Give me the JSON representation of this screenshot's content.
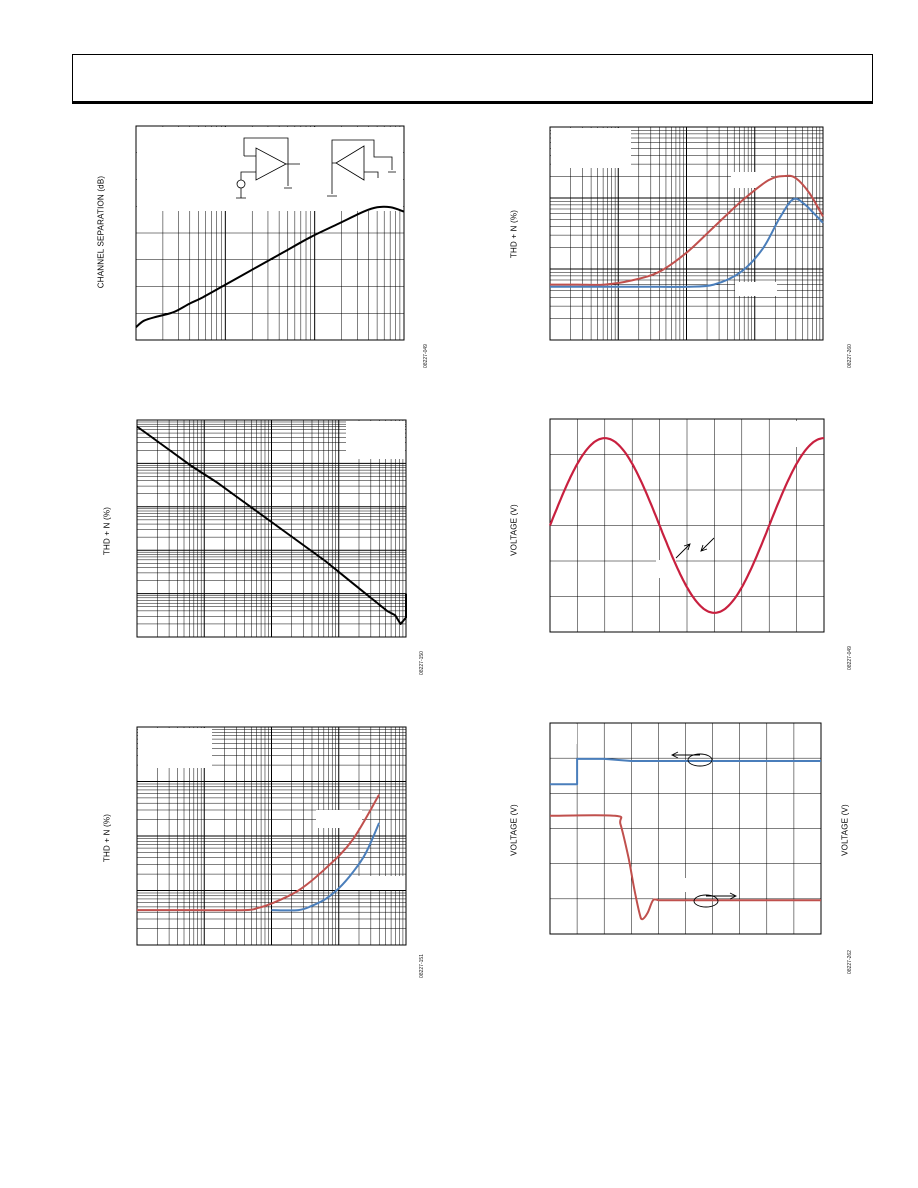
{
  "page": {
    "colors": {
      "black": "#000000",
      "red": "#c0504d",
      "blue": "#4a7ebb",
      "crimson": "#c8203f",
      "grid": "#000000"
    },
    "figures": [
      {
        "id": "fig1",
        "ylabel": "CHANNEL SEPARATION (dB)",
        "code": "08227-049",
        "y2label": ""
      },
      {
        "id": "fig2",
        "ylabel": "THD + N (%)",
        "code": "08227-260",
        "y2label": ""
      },
      {
        "id": "fig3",
        "ylabel": "THD + N (%)",
        "code": "08227-150",
        "y2label": ""
      },
      {
        "id": "fig4",
        "ylabel": "VOLTAGE (V)",
        "code": "08227-049",
        "y2label": ""
      },
      {
        "id": "fig5",
        "ylabel": "THD + N (%)",
        "code": "08227-151",
        "y2label": ""
      },
      {
        "id": "fig6",
        "ylabel": "VOLTAGE (V)",
        "code": "08227-262",
        "y2label": "VOLTAGE (V)"
      }
    ]
  },
  "chart_data": [
    {
      "id": "fig1",
      "type": "line",
      "x_scale": "log",
      "grid": true,
      "title": "",
      "xlabel": "",
      "ylabel": "CHANNEL SEPARATION (dB)",
      "series": [
        {
          "color": "#000000",
          "x": [
            0.0,
            0.03,
            0.08,
            0.14,
            0.2,
            0.25,
            0.35,
            0.45,
            0.55,
            0.65,
            0.75,
            0.85,
            0.9,
            0.95,
            1.0
          ],
          "y": [
            0.06,
            0.09,
            0.11,
            0.13,
            0.17,
            0.2,
            0.27,
            0.34,
            0.41,
            0.48,
            0.54,
            0.6,
            0.62,
            0.62,
            0.6
          ]
        }
      ],
      "inset_schematic": true
    },
    {
      "id": "fig2",
      "type": "line",
      "x_scale": "log",
      "y_scale": "log",
      "grid": true,
      "title": "",
      "xlabel": "",
      "ylabel": "THD + N (%)",
      "series": [
        {
          "color": "#c0504d",
          "x": [
            0.0,
            0.1,
            0.2,
            0.3,
            0.4,
            0.5,
            0.6,
            0.7,
            0.8,
            0.86,
            0.9,
            0.95,
            1.0
          ],
          "y": [
            0.26,
            0.26,
            0.26,
            0.28,
            0.32,
            0.41,
            0.53,
            0.65,
            0.75,
            0.77,
            0.76,
            0.69,
            0.58
          ]
        },
        {
          "color": "#4a7ebb",
          "x": [
            0.0,
            0.1,
            0.2,
            0.3,
            0.4,
            0.5,
            0.6,
            0.7,
            0.78,
            0.84,
            0.89,
            0.93,
            0.97,
            1.0
          ],
          "y": [
            0.25,
            0.25,
            0.25,
            0.25,
            0.25,
            0.25,
            0.26,
            0.32,
            0.43,
            0.57,
            0.66,
            0.64,
            0.59,
            0.55
          ]
        }
      ]
    },
    {
      "id": "fig3",
      "type": "line",
      "x_scale": "log",
      "y_scale": "log",
      "grid": true,
      "title": "",
      "xlabel": "",
      "ylabel": "THD + N (%)",
      "series": [
        {
          "color": "#000000",
          "x": [
            0.0,
            0.1,
            0.2,
            0.3,
            0.4,
            0.5,
            0.6,
            0.7,
            0.8,
            0.9,
            0.93,
            0.96,
            0.98,
            1.0,
            1.0
          ],
          "y": [
            0.97,
            0.88,
            0.79,
            0.71,
            0.62,
            0.53,
            0.44,
            0.35,
            0.25,
            0.15,
            0.12,
            0.1,
            0.06,
            0.09,
            0.2
          ]
        }
      ]
    },
    {
      "id": "fig4",
      "type": "line",
      "grid": true,
      "title": "",
      "xlabel": "",
      "ylabel": "VOLTAGE (V)",
      "series": [
        {
          "color": "#c8203f",
          "shape": "sine",
          "periods": 1.25,
          "phase": 0,
          "amplitude": 0.41,
          "offset": 0.5
        }
      ],
      "annotation": "arrows marking a width"
    },
    {
      "id": "fig5",
      "type": "line",
      "x_scale": "log",
      "y_scale": "log",
      "grid": true,
      "title": "",
      "xlabel": "",
      "ylabel": "THD + N (%)",
      "series": [
        {
          "color": "#c0504d",
          "x": [
            0.0,
            0.2,
            0.4,
            0.45,
            0.5,
            0.6,
            0.7,
            0.8,
            0.9
          ],
          "y": [
            0.16,
            0.16,
            0.16,
            0.17,
            0.19,
            0.25,
            0.35,
            0.48,
            0.69
          ]
        },
        {
          "color": "#4a7ebb",
          "x": [
            0.5,
            0.6,
            0.65,
            0.7,
            0.75,
            0.8,
            0.85,
            0.9
          ],
          "y": [
            0.16,
            0.16,
            0.18,
            0.21,
            0.26,
            0.33,
            0.42,
            0.56
          ]
        }
      ]
    },
    {
      "id": "fig6",
      "type": "line",
      "grid": true,
      "title": "",
      "xlabel": "",
      "ylabel": "VOLTAGE (V)",
      "y2label": "VOLTAGE (V)",
      "series": [
        {
          "color": "#4a7ebb",
          "axis": "left",
          "x": [
            0.0,
            0.1,
            0.1,
            0.2,
            0.3,
            0.5,
            0.7,
            1.0
          ],
          "y": [
            0.71,
            0.71,
            0.83,
            0.83,
            0.82,
            0.82,
            0.82,
            0.82
          ]
        },
        {
          "color": "#c0504d",
          "axis": "right",
          "x": [
            0.0,
            0.24,
            0.26,
            0.29,
            0.31,
            0.33,
            0.34,
            0.36,
            0.38,
            0.4,
            0.42,
            0.5,
            0.7,
            1.0
          ],
          "y": [
            0.56,
            0.56,
            0.52,
            0.36,
            0.22,
            0.1,
            0.07,
            0.1,
            0.16,
            0.16,
            0.16,
            0.16,
            0.16,
            0.16
          ]
        }
      ]
    }
  ]
}
